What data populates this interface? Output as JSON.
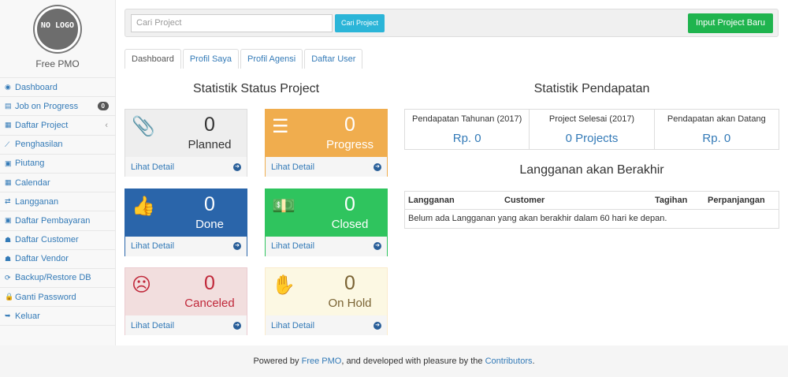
{
  "sidebar": {
    "logo_text": "NO LOGO",
    "brand": "Free PMO",
    "items": [
      {
        "label": "Dashboard",
        "icon": "dashboard-icon",
        "glyph": "◉"
      },
      {
        "label": "Job on Progress",
        "icon": "tasks-icon",
        "glyph": "▤",
        "badge": "0"
      },
      {
        "label": "Daftar Project",
        "icon": "table-icon",
        "glyph": "▦",
        "caret": "‹"
      },
      {
        "label": "Penghasilan",
        "icon": "line-chart-icon",
        "glyph": "⟋"
      },
      {
        "label": "Piutang",
        "icon": "money-icon",
        "glyph": "▣"
      },
      {
        "label": "Calendar",
        "icon": "calendar-icon",
        "glyph": "▦"
      },
      {
        "label": "Langganan",
        "icon": "retweet-icon",
        "glyph": "⇄"
      },
      {
        "label": "Daftar Pembayaran",
        "icon": "money-icon",
        "glyph": "▣"
      },
      {
        "label": "Daftar Customer",
        "icon": "users-icon",
        "glyph": "☗"
      },
      {
        "label": "Daftar Vendor",
        "icon": "users-icon",
        "glyph": "☗"
      },
      {
        "label": "Backup/Restore DB",
        "icon": "refresh-icon",
        "glyph": "⟳"
      },
      {
        "label": "Ganti Password",
        "icon": "lock-icon",
        "glyph": "🔒"
      },
      {
        "label": "Keluar",
        "icon": "sign-out-icon",
        "glyph": "➥"
      }
    ]
  },
  "topbar": {
    "search_placeholder": "Cari Project",
    "search_button": "Cari Project",
    "new_button": "Input Project Baru"
  },
  "tabs": [
    {
      "label": "Dashboard",
      "active": true
    },
    {
      "label": "Profil Saya"
    },
    {
      "label": "Profil Agensi"
    },
    {
      "label": "Daftar User"
    }
  ],
  "status": {
    "title": "Statistik Status Project",
    "detail_label": "Lihat Detail",
    "cards": [
      {
        "label": "Planned",
        "count": "0",
        "icon": "paperclip-icon",
        "glyph": "📎",
        "bg": "#eeeeee",
        "fg": "#333333",
        "border": "#dddddd"
      },
      {
        "label": "Progress",
        "count": "0",
        "icon": "server-icon",
        "glyph": "☰",
        "bg": "#f0ad4e",
        "fg": "#ffffff",
        "border": "#f0ad4e"
      },
      {
        "label": "Done",
        "count": "0",
        "icon": "thumbs-up-icon",
        "glyph": "👍",
        "bg": "#2a65aa",
        "fg": "#ffffff",
        "border": "#2a65aa"
      },
      {
        "label": "Closed",
        "count": "0",
        "icon": "money-icon",
        "glyph": "💵",
        "bg": "#2fc45e",
        "fg": "#ffffff",
        "border": "#2fc45e"
      },
      {
        "label": "Canceled",
        "count": "0",
        "icon": "frown-icon",
        "glyph": "☹",
        "bg": "#f2dede",
        "fg": "#c0283a",
        "border": "#ebccd1"
      },
      {
        "label": "On Hold",
        "count": "0",
        "icon": "hand-stop-icon",
        "glyph": "✋",
        "bg": "#fcf8e3",
        "fg": "#7a6334",
        "border": "#faebcc"
      }
    ]
  },
  "income": {
    "title": "Statistik Pendapatan",
    "stats": [
      {
        "label": "Pendapatan Tahunan (2017)",
        "value": "Rp. 0"
      },
      {
        "label": "Project Selesai (2017)",
        "value": "0 Projects"
      },
      {
        "label": "Pendapatan akan Datang",
        "value": "Rp. 0"
      }
    ]
  },
  "expiring": {
    "title": "Langganan akan Berakhir",
    "columns": [
      "Langganan",
      "Customer",
      "Tagihan",
      "Perpanjangan"
    ],
    "empty": "Belum ada Langganan yang akan berakhir dalam 60 hari ke depan."
  },
  "footer": {
    "pre": "Powered by ",
    "link1": "Free PMO",
    "mid": ", and developed with pleasure by the ",
    "link2": "Contributors",
    "post": "."
  }
}
